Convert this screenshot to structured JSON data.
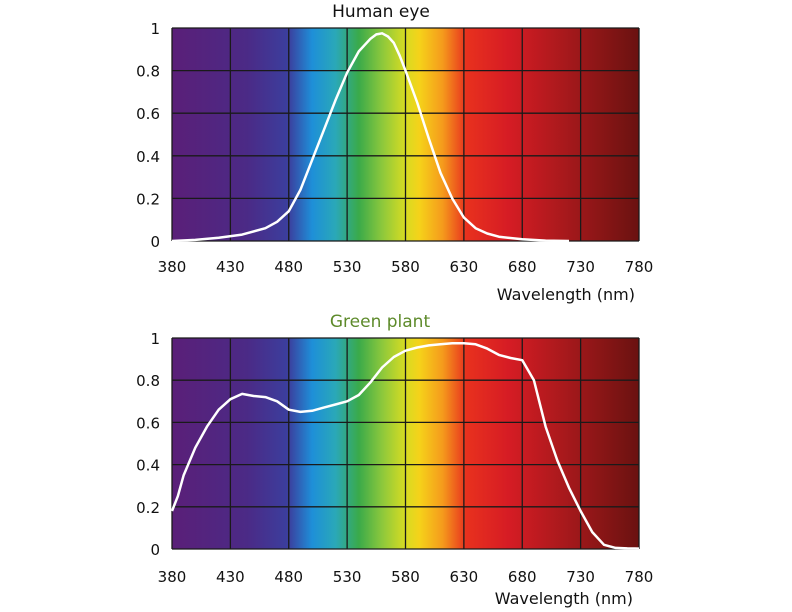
{
  "chart_data": [
    {
      "type": "line",
      "title": "Human eye",
      "title_color": "#111111",
      "xlabel": "Wavelength (nm)",
      "ylabel": "",
      "xlim": [
        380,
        780
      ],
      "ylim": [
        0,
        1
      ],
      "xticks": [
        380,
        430,
        480,
        530,
        580,
        630,
        680,
        730,
        780
      ],
      "yticks": [
        0,
        0.2,
        0.4,
        0.6,
        0.8,
        1
      ],
      "ytick_labels": [
        "0",
        "0.2",
        "0.4",
        "0.6",
        "0.8",
        "1"
      ],
      "grid": true,
      "background": "visible-spectrum-gradient",
      "line_color": "#ffffff",
      "series": [
        {
          "x": [
            380,
            400,
            420,
            440,
            460,
            470,
            480,
            490,
            500,
            510,
            520,
            530,
            540,
            550,
            555,
            560,
            565,
            570,
            575,
            580,
            590,
            600,
            610,
            620,
            630,
            640,
            650,
            660,
            680,
            700,
            720
          ],
          "values": [
            0.0,
            0.005,
            0.015,
            0.03,
            0.06,
            0.09,
            0.14,
            0.24,
            0.38,
            0.52,
            0.66,
            0.79,
            0.89,
            0.95,
            0.97,
            0.975,
            0.96,
            0.93,
            0.87,
            0.8,
            0.65,
            0.48,
            0.32,
            0.2,
            0.11,
            0.06,
            0.035,
            0.02,
            0.008,
            0.002,
            0.0
          ]
        }
      ]
    },
    {
      "type": "line",
      "title": "Green plant",
      "title_color": "#5d8a2a",
      "xlabel": "Wavelength (nm)",
      "ylabel": "",
      "xlim": [
        380,
        780
      ],
      "ylim": [
        0,
        1
      ],
      "xticks": [
        380,
        430,
        480,
        530,
        580,
        630,
        680,
        730,
        780
      ],
      "yticks": [
        0,
        0.2,
        0.4,
        0.6,
        0.8,
        1
      ],
      "ytick_labels": [
        "0",
        "0.2",
        "0.4",
        "0.6",
        "0.8",
        "1"
      ],
      "grid": true,
      "background": "visible-spectrum-gradient",
      "line_color": "#ffffff",
      "series": [
        {
          "x": [
            380,
            385,
            390,
            400,
            410,
            420,
            430,
            440,
            450,
            460,
            470,
            480,
            490,
            500,
            510,
            520,
            530,
            540,
            550,
            560,
            570,
            580,
            590,
            600,
            610,
            620,
            630,
            640,
            650,
            660,
            670,
            680,
            690,
            700,
            710,
            720,
            730,
            740,
            750,
            760,
            770,
            780
          ],
          "values": [
            0.18,
            0.25,
            0.35,
            0.48,
            0.58,
            0.66,
            0.71,
            0.735,
            0.725,
            0.72,
            0.7,
            0.66,
            0.65,
            0.655,
            0.67,
            0.685,
            0.7,
            0.73,
            0.79,
            0.86,
            0.91,
            0.94,
            0.955,
            0.965,
            0.97,
            0.975,
            0.975,
            0.97,
            0.95,
            0.92,
            0.905,
            0.895,
            0.8,
            0.58,
            0.42,
            0.29,
            0.18,
            0.08,
            0.02,
            0.005,
            0.003,
            0.002
          ]
        }
      ]
    }
  ]
}
